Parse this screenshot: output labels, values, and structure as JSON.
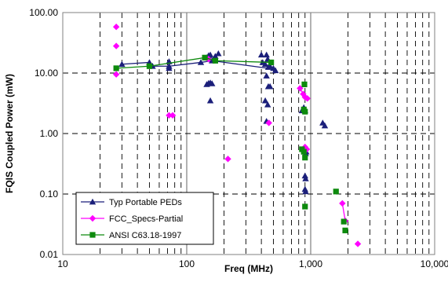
{
  "chart_data": {
    "type": "scatter",
    "x_scale": "log",
    "y_scale": "log",
    "xlabel": "Freq (MHz)",
    "ylabel": "FQIS Coupled Power (mW)",
    "xlim": [
      10,
      10000
    ],
    "ylim": [
      0.01,
      100
    ],
    "x_ticks": [
      10,
      100,
      1000,
      10000
    ],
    "x_tick_labels": [
      "10",
      "100",
      "1,000",
      "10,000"
    ],
    "y_ticks": [
      0.01,
      0.1,
      1,
      10,
      100
    ],
    "y_tick_labels": [
      "0.01",
      "0.10",
      "1.00",
      "10.00",
      "100.00"
    ],
    "grid": "dashed, log-spaced vertical lines; horizontal at decades",
    "legend_position": "lower-left",
    "series": [
      {
        "name": "Typ Portable PEDs",
        "color": "#1b1f7a",
        "marker": "triangle",
        "line_points": [
          [
            30,
            14
          ],
          [
            50,
            15
          ],
          [
            53,
            13
          ],
          [
            72,
            13
          ],
          [
            130,
            15
          ],
          [
            160,
            16
          ],
          [
            450,
            12
          ],
          [
            500,
            12
          ]
        ],
        "points": [
          [
            30,
            14
          ],
          [
            50,
            15
          ],
          [
            53,
            13
          ],
          [
            72,
            15.5
          ],
          [
            72,
            13
          ],
          [
            72,
            12
          ],
          [
            130,
            15
          ],
          [
            145,
            18
          ],
          [
            150,
            19.5
          ],
          [
            155,
            20
          ],
          [
            160,
            16
          ],
          [
            170,
            19
          ],
          [
            180,
            21
          ],
          [
            145,
            6.5
          ],
          [
            150,
            6.8
          ],
          [
            155,
            6.9
          ],
          [
            160,
            6.7
          ],
          [
            155,
            3.5
          ],
          [
            400,
            20
          ],
          [
            410,
            15
          ],
          [
            430,
            14
          ],
          [
            440,
            20
          ],
          [
            450,
            17
          ],
          [
            455,
            12.5
          ],
          [
            470,
            13
          ],
          [
            500,
            12
          ],
          [
            520,
            11
          ],
          [
            440,
            9
          ],
          [
            455,
            6
          ],
          [
            470,
            6
          ],
          [
            430,
            3.5
          ],
          [
            450,
            3
          ],
          [
            440,
            1.6
          ],
          [
            850,
            2.4
          ],
          [
            880,
            2.7
          ],
          [
            900,
            2.4
          ],
          [
            900,
            0.5
          ],
          [
            910,
            0.47
          ],
          [
            920,
            0.5
          ],
          [
            900,
            0.2
          ],
          [
            910,
            0.18
          ],
          [
            900,
            0.12
          ],
          [
            910,
            0.11
          ],
          [
            1250,
            1.5
          ],
          [
            1300,
            1.35
          ]
        ]
      },
      {
        "name": "FCC_Specs-Partial",
        "color": "#ff00ff",
        "marker": "diamond",
        "line_points": [
          [
            820,
            5.6
          ],
          [
            870,
            4.5
          ],
          [
            900,
            4.0
          ],
          [
            940,
            3.8
          ]
        ],
        "line_points_2": [
          [
            1800,
            0.07
          ],
          [
            1900,
            0.036
          ]
        ],
        "points": [
          [
            27,
            58
          ],
          [
            27,
            28
          ],
          [
            27,
            9.5
          ],
          [
            72,
            2.0
          ],
          [
            77,
            2.0
          ],
          [
            150,
            17
          ],
          [
            215,
            0.38
          ],
          [
            460,
            1.5
          ],
          [
            820,
            5.6
          ],
          [
            870,
            4.5
          ],
          [
            900,
            4.0
          ],
          [
            940,
            3.8
          ],
          [
            900,
            0.6
          ],
          [
            930,
            0.55
          ],
          [
            1800,
            0.07
          ],
          [
            1900,
            0.036
          ],
          [
            2400,
            0.015
          ]
        ]
      },
      {
        "name": "ANSI C63.18-1997",
        "color": "#0d8a0d",
        "marker": "square",
        "line_points": [
          [
            27,
            12
          ],
          [
            50,
            13
          ],
          [
            140,
            18
          ],
          [
            170,
            16
          ],
          [
            480,
            15
          ]
        ],
        "points": [
          [
            27,
            12
          ],
          [
            50,
            13
          ],
          [
            140,
            18
          ],
          [
            170,
            16
          ],
          [
            480,
            15
          ],
          [
            890,
            6.5
          ],
          [
            880,
            2.5
          ],
          [
            900,
            2.3
          ],
          [
            850,
            0.55
          ],
          [
            880,
            0.5
          ],
          [
            900,
            0.4
          ],
          [
            900,
            0.062
          ],
          [
            1600,
            0.11
          ],
          [
            1850,
            0.035
          ],
          [
            1900,
            0.025
          ]
        ]
      }
    ]
  }
}
